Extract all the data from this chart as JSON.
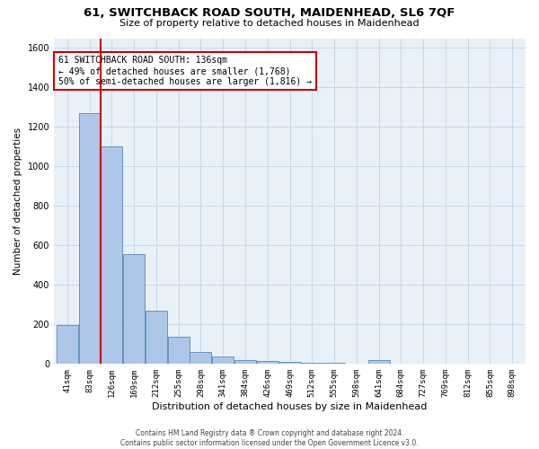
{
  "title": "61, SWITCHBACK ROAD SOUTH, MAIDENHEAD, SL6 7QF",
  "subtitle": "Size of property relative to detached houses in Maidenhead",
  "xlabel": "Distribution of detached houses by size in Maidenhead",
  "ylabel": "Number of detached properties",
  "footer_line1": "Contains HM Land Registry data ® Crown copyright and database right 2024.",
  "footer_line2": "Contains public sector information licensed under the Open Government Licence v3.0.",
  "bin_labels": [
    "41sqm",
    "83sqm",
    "126sqm",
    "169sqm",
    "212sqm",
    "255sqm",
    "298sqm",
    "341sqm",
    "384sqm",
    "426sqm",
    "469sqm",
    "512sqm",
    "555sqm",
    "598sqm",
    "641sqm",
    "684sqm",
    "727sqm",
    "769sqm",
    "812sqm",
    "855sqm",
    "898sqm"
  ],
  "bar_values": [
    197,
    1270,
    1100,
    553,
    270,
    135,
    60,
    35,
    18,
    12,
    7,
    5,
    4,
    0,
    18,
    0,
    0,
    0,
    0,
    0,
    0
  ],
  "bar_color": "#aec6e8",
  "bar_edgecolor": "#5588bb",
  "grid_color": "#c8d8ea",
  "background_color": "#e8f0f8",
  "vline_color": "#cc0000",
  "vline_index": 2,
  "ylim": [
    0,
    1650
  ],
  "yticks": [
    0,
    200,
    400,
    600,
    800,
    1000,
    1200,
    1400,
    1600
  ],
  "annotation_text": "61 SWITCHBACK ROAD SOUTH: 136sqm\n← 49% of detached houses are smaller (1,768)\n50% of semi-detached houses are larger (1,816) →",
  "annotation_box_edgecolor": "#cc0000",
  "annotation_fontsize": 7.0,
  "title_fontsize": 9.5,
  "subtitle_fontsize": 8.0,
  "ylabel_fontsize": 7.5,
  "xlabel_fontsize": 8.0,
  "tick_fontsize": 6.5,
  "footer_fontsize": 5.5
}
